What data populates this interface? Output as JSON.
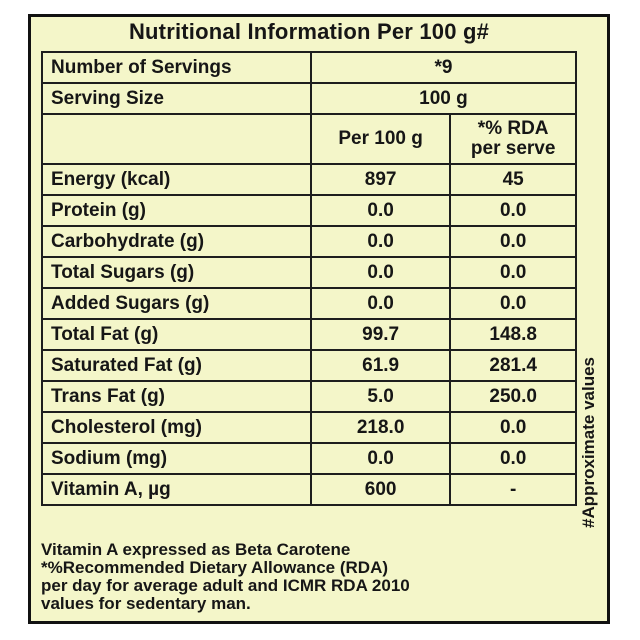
{
  "title": "Nutritional Information Per 100 g#",
  "servings": {
    "label": "Number of Servings",
    "value": "*9"
  },
  "serving_size": {
    "label": "Serving Size",
    "value": "100 g"
  },
  "columns": {
    "per100": "Per 100 g",
    "rda_line1": "*% RDA",
    "rda_line2": "per serve"
  },
  "rows": [
    {
      "label": "Energy (kcal)",
      "per100": "897",
      "rda": "45"
    },
    {
      "label": "Protein (g)",
      "per100": "0.0",
      "rda": "0.0"
    },
    {
      "label": "Carbohydrate (g)",
      "per100": "0.0",
      "rda": "0.0"
    },
    {
      "label": "Total Sugars (g)",
      "per100": "0.0",
      "rda": "0.0"
    },
    {
      "label": "Added Sugars (g)",
      "per100": "0.0",
      "rda": "0.0"
    },
    {
      "label": "Total Fat (g)",
      "per100": "99.7",
      "rda": "148.8"
    },
    {
      "label": "Saturated Fat (g)",
      "per100": "61.9",
      "rda": "281.4"
    },
    {
      "label": "Trans Fat (g)",
      "per100": "5.0",
      "rda": "250.0"
    },
    {
      "label": "Cholesterol (mg)",
      "per100": "218.0",
      "rda": "0.0"
    },
    {
      "label": "Sodium (mg)",
      "per100": "0.0",
      "rda": "0.0"
    },
    {
      "label": "Vitamin A, µg",
      "per100": "600",
      "rda": "-"
    }
  ],
  "side_note": "#Approximate values",
  "footnotes": [
    "Vitamin A expressed as Beta Carotene",
    "*%Recommended Dietary Allowance (RDA)",
    "per day for average adult and ICMR RDA 2010",
    "values for sedentary man."
  ],
  "colors": {
    "background": "#f4f6c9",
    "text": "#161616",
    "border": "#1e1e1e"
  }
}
